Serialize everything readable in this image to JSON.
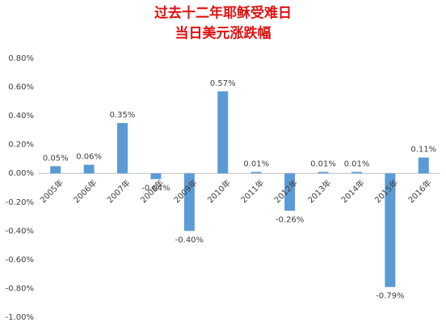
{
  "chart_data": {
    "type": "bar",
    "title": "过去十二年耶稣受难日",
    "subtitle": "当日美元涨跌幅",
    "categories": [
      "2005年",
      "2006年",
      "2007年",
      "2008年",
      "2009年",
      "2010年",
      "2011年",
      "2012年",
      "2013年",
      "2014年",
      "2015年",
      "2016年"
    ],
    "values": [
      0.05,
      0.06,
      0.35,
      -0.04,
      -0.4,
      0.57,
      0.01,
      -0.26,
      0.01,
      0.01,
      -0.79,
      0.11
    ],
    "value_labels": [
      "0.05%",
      "0.06%",
      "0.35%",
      "-0.04%",
      "-0.40%",
      "0.57%",
      "0.01%",
      "-0.26%",
      "0.01%",
      "0.01%",
      "-0.79%",
      "0.11%"
    ],
    "color": "#5b9bd5",
    "ylim": [
      -1.0,
      0.8
    ],
    "yticks": [
      {
        "value": -1.0,
        "label": "-1.00%"
      },
      {
        "value": -0.8,
        "label": "-0.80%"
      },
      {
        "value": -0.6,
        "label": "-0.60%"
      },
      {
        "value": -0.4,
        "label": "-0.40%"
      },
      {
        "value": -0.2,
        "label": "-0.20%"
      },
      {
        "value": 0,
        "label": "0.00%"
      },
      {
        "value": 0.2,
        "label": "0.20%"
      },
      {
        "value": 0.4,
        "label": "0.40%"
      },
      {
        "value": 0.6,
        "label": "0.60%"
      },
      {
        "value": 0.8,
        "label": "0.80%"
      }
    ],
    "grid": false
  }
}
